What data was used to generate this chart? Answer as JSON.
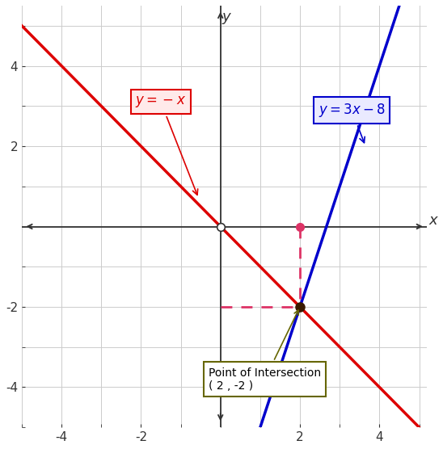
{
  "xlabel": "x",
  "ylabel": "y",
  "xlim": [
    -5.0,
    5.2
  ],
  "ylim": [
    -5.0,
    5.5
  ],
  "xticks": [
    -4,
    -2,
    2,
    4
  ],
  "yticks": [
    -4,
    -2,
    2,
    4
  ],
  "line1_slope": -1,
  "line1_intercept": 0,
  "line1_color": "#dd0000",
  "line1_label": "$y = -x$",
  "line2_slope": 3,
  "line2_intercept": -8,
  "line2_color": "#0000cc",
  "line2_label": "$y = 3x - 8$",
  "intersection": [
    2,
    -2
  ],
  "dashed_color": "#dd3366",
  "dot_color": "#dd3366",
  "intersection_dot_color": "#3a1a00",
  "annotation_box_edgecolor": "#666600",
  "annotation_text": "Point of Intersection\n( 2 , -2 )",
  "background_color": "#ffffff",
  "grid_color": "#cccccc",
  "axis_color": "#333333",
  "label1_box_facecolor": "#ffeaea",
  "label1_box_edgecolor": "#dd0000",
  "label2_box_facecolor": "#eaeaff",
  "label2_box_edgecolor": "#0000cc"
}
